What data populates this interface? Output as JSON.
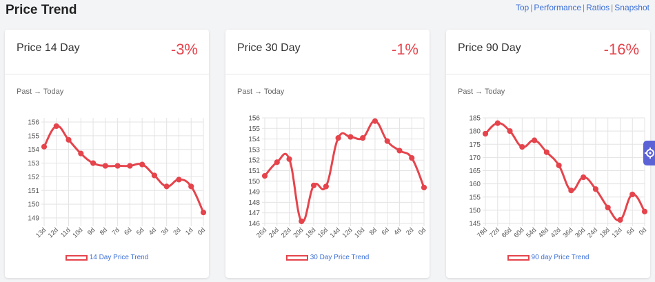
{
  "page": {
    "title": "Price Trend",
    "links": [
      "Top",
      "Performance",
      "Ratios",
      "Snapshot"
    ]
  },
  "colors": {
    "accent_red": "#e5444c",
    "link_blue": "#3b6fd6",
    "side_tab": "#5a62d6"
  },
  "side_tab_icon": "gear-icon",
  "cards": [
    {
      "title": "Price 14 Day",
      "change": "-3%",
      "subtitle": "Past → Today",
      "legend": "14 Day Price Trend"
    },
    {
      "title": "Price 30 Day",
      "change": "-1%",
      "subtitle": "Past → Today",
      "legend": "30 Day Price Trend"
    },
    {
      "title": "Price 90 Day",
      "change": "-16%",
      "subtitle": "Past → Today",
      "legend": "90 day Price Trend"
    }
  ],
  "chart_data": [
    {
      "type": "line",
      "x": [
        "13d",
        "12d",
        "11d",
        "10d",
        "9d",
        "8d",
        "7d",
        "6d",
        "5d",
        "4d",
        "3d",
        "2d",
        "1d",
        "0d"
      ],
      "series": [
        {
          "name": "14 Day Price Trend",
          "values": [
            154.2,
            155.7,
            154.7,
            153.7,
            153.0,
            152.8,
            152.8,
            152.8,
            152.9,
            152.1,
            151.3,
            151.8,
            151.3,
            149.4
          ]
        }
      ],
      "yticks": [
        149,
        150,
        151,
        152,
        153,
        154,
        155,
        156
      ],
      "ylim": [
        148.6,
        156.3
      ],
      "grid": true,
      "legend_position": "bottom"
    },
    {
      "type": "line",
      "x": [
        "26d",
        "24d",
        "22d",
        "20d",
        "18d",
        "16d",
        "14d",
        "12d",
        "10d",
        "8d",
        "6d",
        "4d",
        "2d",
        "0d"
      ],
      "series": [
        {
          "name": "30 Day Price Trend",
          "values": [
            150.5,
            151.8,
            152.1,
            146.2,
            149.6,
            149.5,
            154.1,
            154.2,
            154.1,
            155.7,
            153.8,
            152.9,
            152.2,
            149.4
          ]
        }
      ],
      "yticks": [
        146,
        147,
        148,
        149,
        150,
        151,
        152,
        153,
        154,
        155,
        156
      ],
      "ylim": [
        146,
        156
      ],
      "grid": true,
      "legend_position": "bottom"
    },
    {
      "type": "line",
      "x": [
        "78d",
        "72d",
        "66d",
        "60d",
        "54d",
        "48d",
        "42d",
        "36d",
        "30d",
        "24d",
        "18d",
        "12d",
        "5d",
        "0d"
      ],
      "series": [
        {
          "name": "90 day Price Trend",
          "values": [
            179,
            183,
            180,
            174,
            176.5,
            172,
            167,
            157.5,
            162.5,
            158,
            151,
            146.3,
            156,
            149.5
          ]
        }
      ],
      "yticks": [
        145,
        150,
        155,
        160,
        165,
        170,
        175,
        180,
        185
      ],
      "ylim": [
        145,
        185
      ],
      "grid": true,
      "legend_position": "bottom"
    }
  ]
}
